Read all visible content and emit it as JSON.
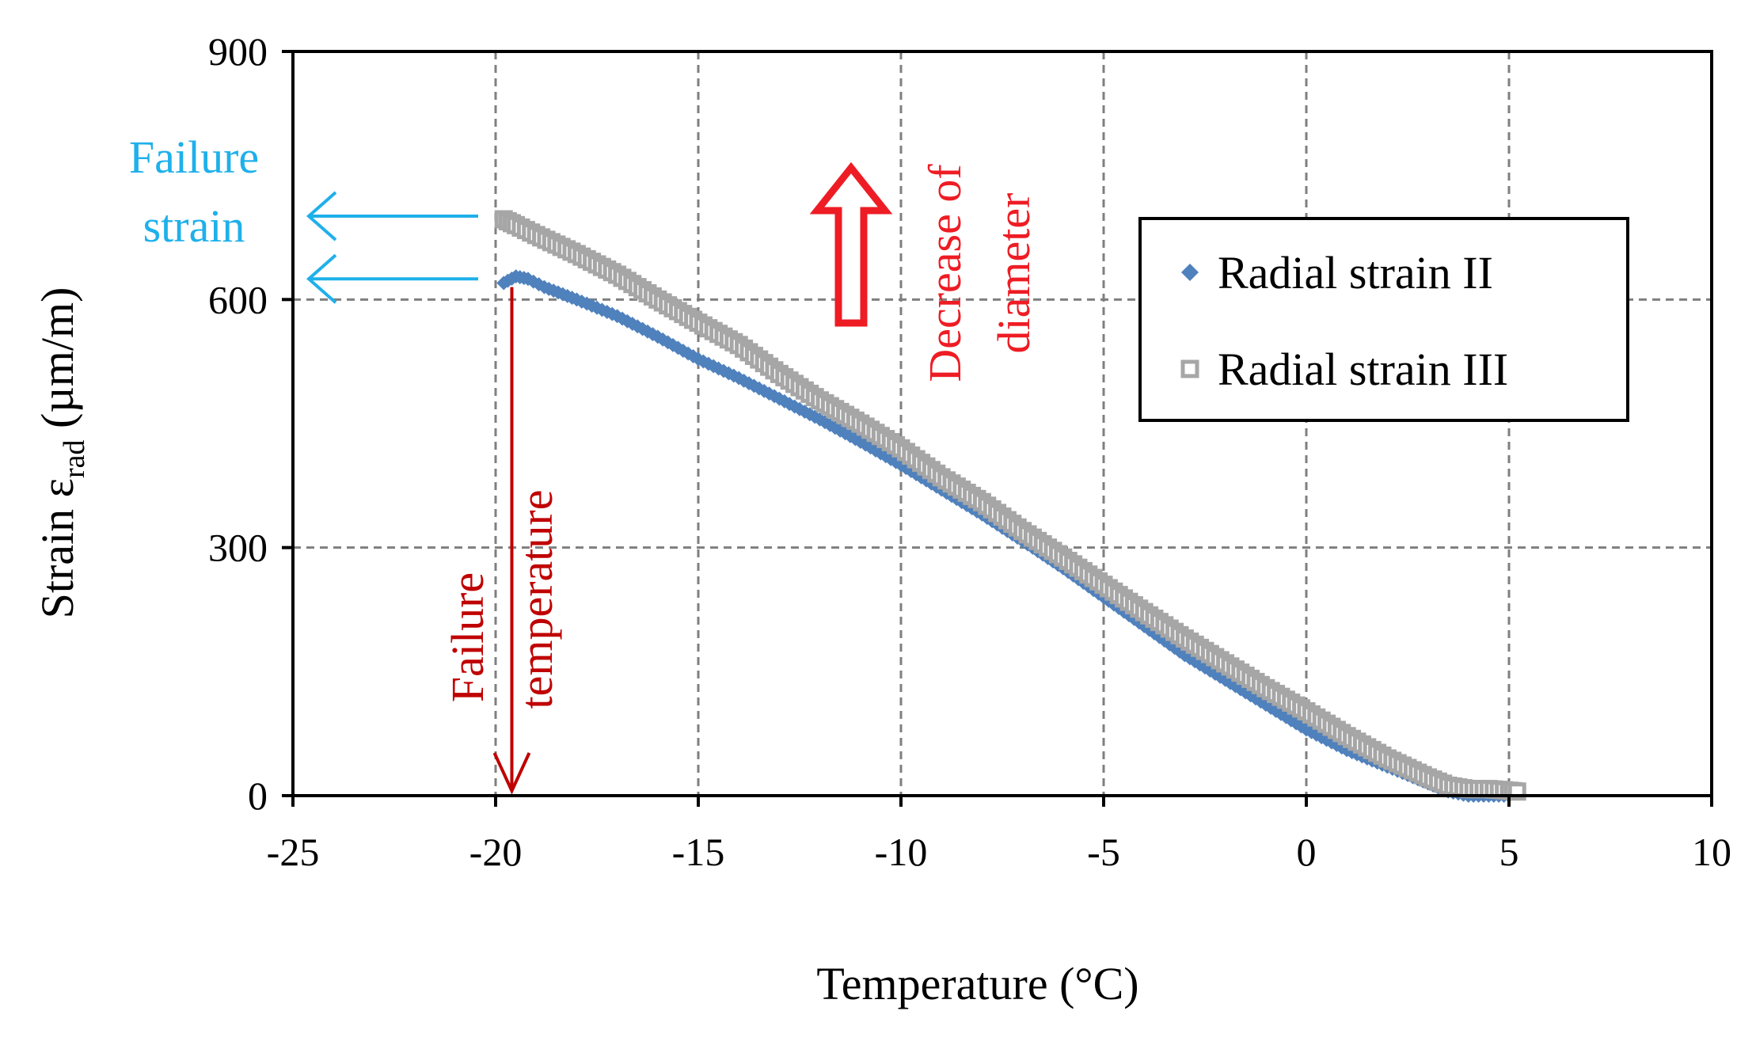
{
  "chart_data": {
    "type": "scatter",
    "title": "",
    "xlabel": "Temperature (°C)",
    "ylabel": {
      "prefix": "Strain ε",
      "subscript": "rad",
      "suffix": " (µm/m)"
    },
    "xlim": [
      -25,
      10
    ],
    "ylim": [
      0,
      900
    ],
    "xticks": [
      -25,
      -20,
      -15,
      -10,
      -5,
      0,
      5,
      10
    ],
    "yticks": [
      0,
      300,
      600,
      900
    ],
    "grid": true,
    "legend_position": "top-right",
    "series": [
      {
        "name": "Radial strain II",
        "marker": "diamond",
        "color": "#4f81bd",
        "points": [
          [
            -19.8,
            620
          ],
          [
            -19.5,
            628
          ],
          [
            -19.2,
            625
          ],
          [
            -18.8,
            615
          ],
          [
            -18.0,
            600
          ],
          [
            -17.0,
            580
          ],
          [
            -16.0,
            555
          ],
          [
            -15.0,
            528
          ],
          [
            -14.0,
            505
          ],
          [
            -13.0,
            480
          ],
          [
            -12.0,
            455
          ],
          [
            -11.0,
            428
          ],
          [
            -10.0,
            400
          ],
          [
            -9.0,
            370
          ],
          [
            -8.0,
            340
          ],
          [
            -7.0,
            308
          ],
          [
            -6.0,
            275
          ],
          [
            -5.0,
            240
          ],
          [
            -4.0,
            205
          ],
          [
            -3.0,
            170
          ],
          [
            -2.0,
            140
          ],
          [
            -1.0,
            110
          ],
          [
            0.0,
            80
          ],
          [
            1.0,
            55
          ],
          [
            2.0,
            35
          ],
          [
            3.0,
            15
          ],
          [
            3.5,
            5
          ],
          [
            4.0,
            0
          ],
          [
            4.5,
            0
          ],
          [
            5.0,
            0
          ]
        ]
      },
      {
        "name": "Radial strain III",
        "marker": "square-open",
        "color": "#a6a6a6",
        "points": [
          [
            -19.8,
            697
          ],
          [
            -19.5,
            690
          ],
          [
            -19.0,
            678
          ],
          [
            -18.0,
            655
          ],
          [
            -17.0,
            630
          ],
          [
            -16.0,
            600
          ],
          [
            -15.0,
            572
          ],
          [
            -14.0,
            545
          ],
          [
            -13.0,
            510
          ],
          [
            -12.0,
            478
          ],
          [
            -11.0,
            450
          ],
          [
            -10.0,
            420
          ],
          [
            -9.0,
            385
          ],
          [
            -8.0,
            355
          ],
          [
            -7.0,
            320
          ],
          [
            -6.0,
            288
          ],
          [
            -5.0,
            255
          ],
          [
            -4.0,
            222
          ],
          [
            -3.0,
            190
          ],
          [
            -2.0,
            160
          ],
          [
            -1.0,
            130
          ],
          [
            0.0,
            102
          ],
          [
            1.0,
            72
          ],
          [
            2.0,
            45
          ],
          [
            3.0,
            22
          ],
          [
            3.5,
            12
          ],
          [
            4.0,
            8
          ],
          [
            4.5,
            8
          ],
          [
            5.0,
            6
          ],
          [
            5.2,
            5
          ]
        ]
      }
    ],
    "annotations": {
      "failure_strain": {
        "lines": [
          "Failure",
          "strain"
        ],
        "color": "#1fb0ea",
        "arrow_values": [
          697,
          625
        ]
      },
      "failure_temperature": {
        "lines": [
          "Failure",
          "temperature"
        ],
        "color": "#c00000",
        "x_value": -19.6
      },
      "decrease_of_diameter": {
        "lines": [
          "Decrease of",
          "diameter"
        ],
        "color": "#ee1c24"
      }
    }
  }
}
